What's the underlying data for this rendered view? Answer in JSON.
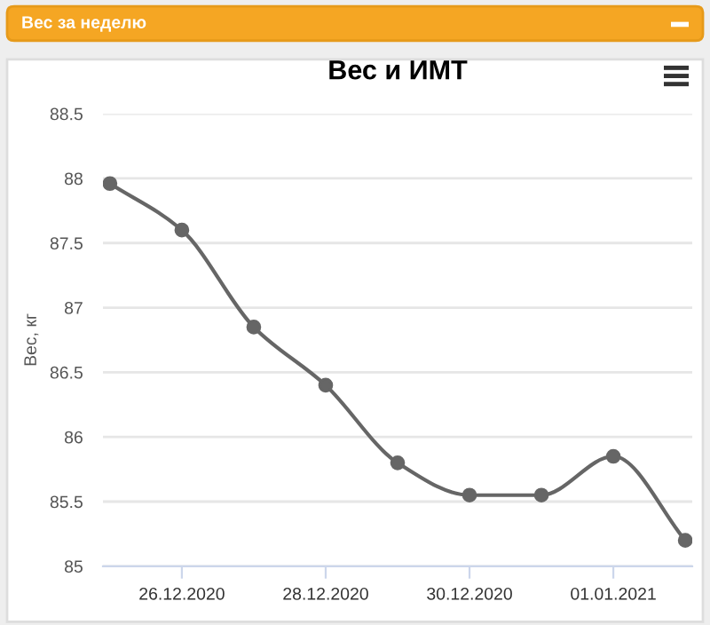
{
  "chart_data": {
    "type": "line",
    "title": "Вес и ИМТ",
    "ylabel": "Вес, кг",
    "annotations": [
      "Вес за неделю"
    ],
    "x": [
      "2020-12-25",
      "2020-12-26",
      "2020-12-27",
      "2020-12-28",
      "2020-12-29",
      "2020-12-30",
      "2020-12-31",
      "2021-01-01",
      "2021-01-02"
    ],
    "series": [
      {
        "color": "#666666",
        "values": [
          87.96,
          87.6,
          86.85,
          86.4,
          85.8,
          85.55,
          85.55,
          85.85,
          85.2
        ]
      }
    ],
    "xlim": [
      "2020-12-24T21:40",
      "2021-01-02T02:20"
    ],
    "xticks": [
      {
        "value": "2020-12-26",
        "label": "26.12.2020"
      },
      {
        "value": "2020-12-28",
        "label": "28.12.2020"
      },
      {
        "value": "2020-12-30",
        "label": "30.12.2020"
      },
      {
        "value": "2021-01-01",
        "label": "01.01.2021"
      }
    ],
    "ylim": [
      85,
      88.5
    ],
    "yticks": [
      85,
      85.5,
      86,
      86.5,
      87,
      87.5,
      88,
      88.5
    ],
    "grid": "y",
    "legend": false,
    "marker": "circle",
    "line_style": "solid"
  }
}
